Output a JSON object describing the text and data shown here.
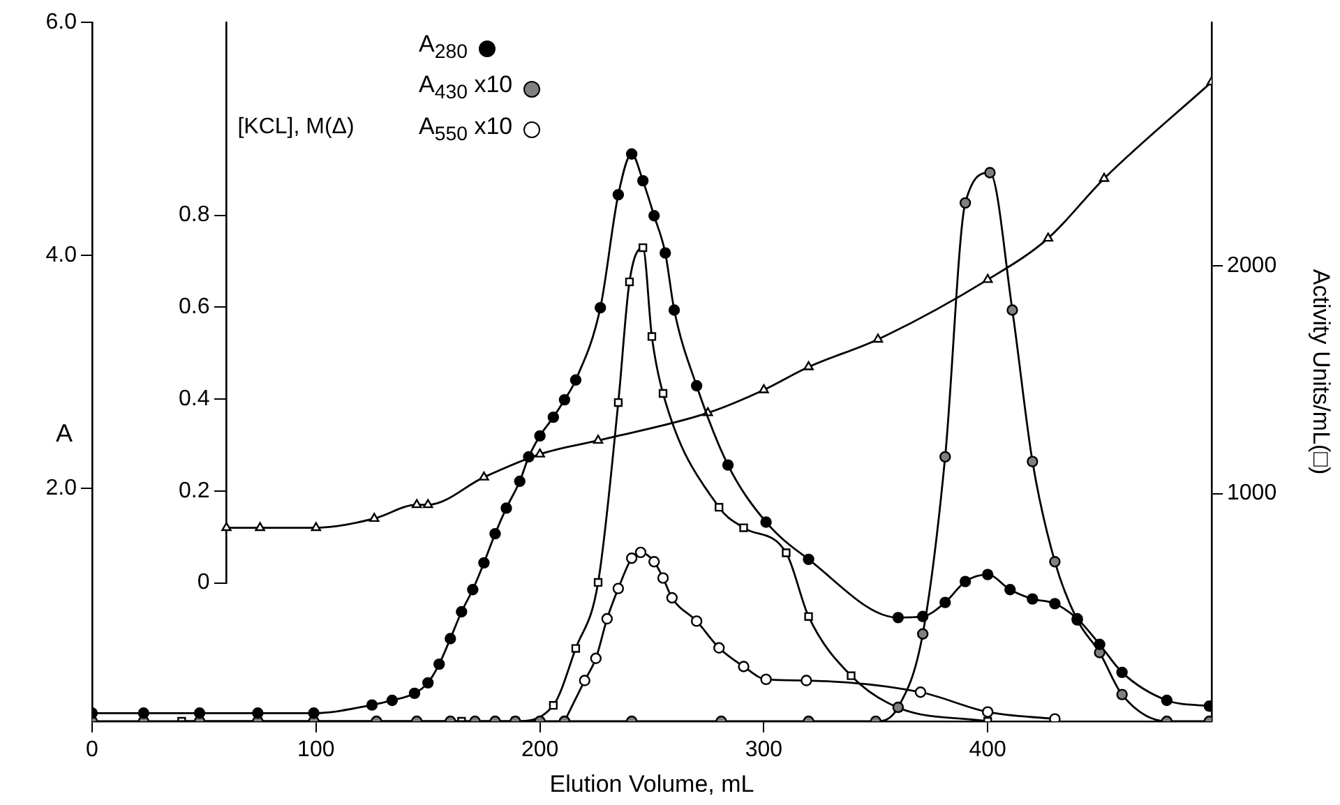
{
  "chart_data": {
    "type": "line",
    "xlabel": "Elution Volume, mL",
    "ylabel": "A",
    "y2label": "Activity Units/mL(□)",
    "y3label": "[KCL], M(Δ)",
    "xlim": [
      0,
      500
    ],
    "xticks": [
      0,
      100,
      200,
      300,
      400
    ],
    "ylim": [
      0,
      6
    ],
    "yticks": [
      {
        "value": 2,
        "label": "2.0"
      },
      {
        "value": 4,
        "label": "4.0"
      },
      {
        "value": 6,
        "label": "6.0"
      }
    ],
    "y2lim": [
      0,
      3070
    ],
    "y2ticks": [
      1000,
      2000
    ],
    "y3lim": [
      0,
      1.22
    ],
    "y3ticks": [
      0,
      0.2,
      0.4,
      0.6,
      0.8
    ],
    "legend": "top",
    "grid": false,
    "series": [
      {
        "name": "A$_{280}$",
        "color": "#000000",
        "marker": "circle",
        "x": [
          0,
          23,
          48,
          74,
          99,
          125,
          134,
          144,
          150,
          155,
          160,
          165,
          170,
          175,
          180,
          185,
          191,
          195,
          200,
          206,
          211,
          216,
          227,
          235,
          241,
          246,
          251,
          256,
          260,
          270,
          284,
          301,
          320,
          360,
          371,
          381,
          390,
          400,
          410,
          420,
          430,
          440,
          450,
          460,
          480,
          499
        ],
        "values": [
          0.07,
          0.07,
          0.07,
          0.07,
          0.07,
          0.14,
          0.18,
          0.24,
          0.33,
          0.49,
          0.71,
          0.94,
          1.13,
          1.36,
          1.61,
          1.83,
          2.06,
          2.27,
          2.45,
          2.61,
          2.76,
          2.93,
          3.55,
          4.52,
          4.87,
          4.64,
          4.34,
          4.02,
          3.53,
          2.88,
          2.2,
          1.71,
          1.39,
          0.89,
          0.9,
          1.02,
          1.2,
          1.26,
          1.13,
          1.05,
          1.01,
          0.88,
          0.66,
          0.42,
          0.18,
          0.13
        ]
      },
      {
        "name": "A$_{430}$ x10",
        "color": "#808080",
        "marker": "circle",
        "x": [
          0,
          23,
          48,
          74,
          99,
          127,
          145,
          160,
          171,
          180,
          189,
          200,
          211,
          241,
          281,
          320,
          350,
          360,
          371,
          381,
          390,
          401,
          411,
          420,
          430,
          440,
          450,
          460,
          480,
          499
        ],
        "values": [
          0,
          0,
          0,
          0,
          0,
          0,
          0,
          0,
          0,
          0,
          0,
          0,
          0,
          0,
          0,
          0,
          0,
          0.12,
          0.75,
          2.27,
          4.45,
          4.71,
          3.53,
          2.23,
          1.37,
          0.87,
          0.59,
          0.23,
          0,
          0
        ]
      },
      {
        "name": "A$_{550}$ x10",
        "color": "#ffffff",
        "marker": "circle",
        "x": [
          211,
          220,
          225,
          230,
          235,
          241,
          245,
          251,
          255,
          259,
          270,
          280,
          291,
          301,
          319,
          370,
          400,
          430
        ],
        "values": [
          0,
          0.35,
          0.54,
          0.88,
          1.14,
          1.4,
          1.45,
          1.37,
          1.23,
          1.06,
          0.86,
          0.63,
          0.47,
          0.36,
          0.35,
          0.25,
          0.08,
          0.02
        ]
      },
      {
        "color": "#ffffff",
        "marker": "square",
        "axis": "y2",
        "x": [
          40,
          165,
          189,
          206,
          216,
          226,
          235,
          240,
          246,
          250,
          255,
          280,
          291,
          310,
          320,
          339,
          360,
          400
        ],
        "values": [
          0,
          0,
          0,
          70,
          320,
          610,
          1400,
          1930,
          2080,
          1690,
          1440,
          940,
          850,
          740,
          460,
          200,
          60,
          0
        ]
      },
      {
        "color": "#ffffff",
        "marker": "triangle",
        "axis": "y3",
        "x": [
          60,
          75,
          100,
          126,
          145,
          150,
          175,
          200,
          226,
          275,
          300,
          320,
          351,
          400,
          427,
          452,
          500
        ],
        "values": [
          0.12,
          0.12,
          0.12,
          0.14,
          0.17,
          0.17,
          0.23,
          0.28,
          0.31,
          0.37,
          0.42,
          0.47,
          0.53,
          0.66,
          0.75,
          0.88,
          1.09
        ]
      }
    ]
  }
}
